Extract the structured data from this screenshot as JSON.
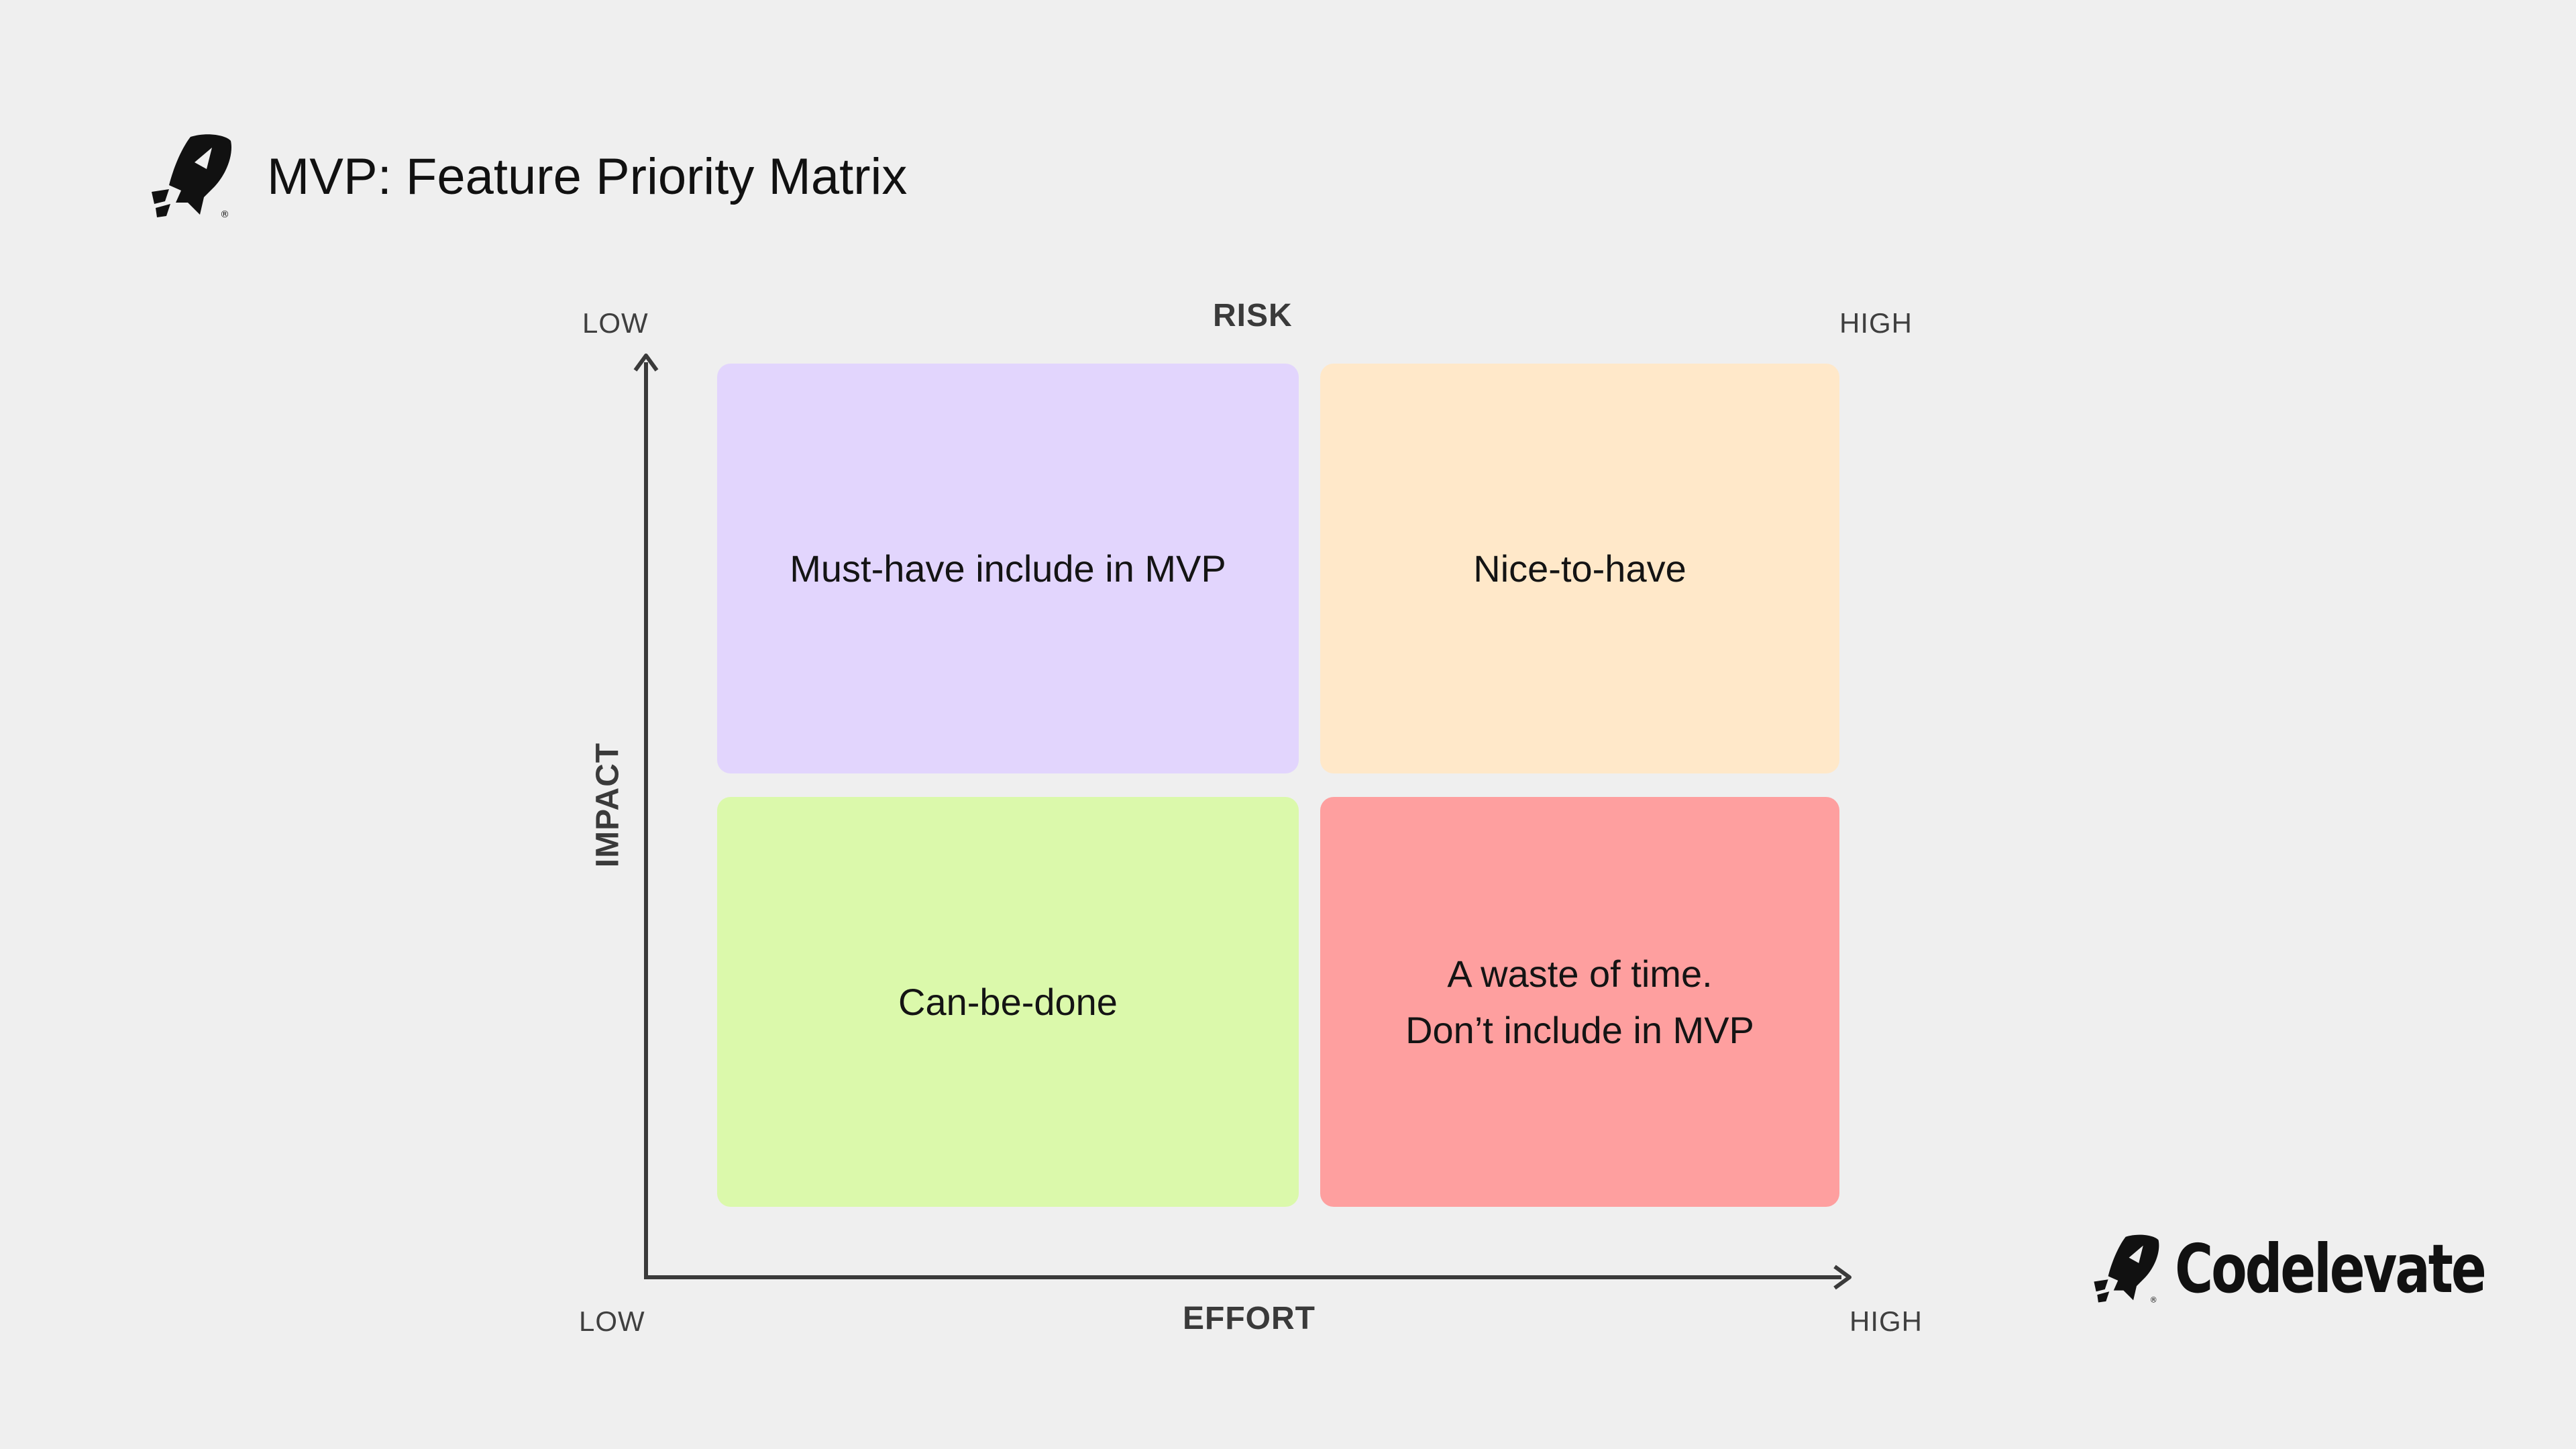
{
  "header": {
    "title": "MVP: Feature Priority Matrix",
    "logo_icon": "rocket-logo-icon"
  },
  "matrix": {
    "top_axis": {
      "title": "RISK",
      "low_label": "LOW",
      "high_label": "HIGH"
    },
    "bottom_axis": {
      "title": "EFFORT",
      "low_label": "LOW",
      "high_label": "HIGH"
    },
    "left_axis": {
      "title": "IMPACT"
    },
    "quadrants": [
      {
        "label": "Must-have include in MVP",
        "color": "#e2d5fd"
      },
      {
        "label": "Nice-to-have",
        "color": "#ffe8c9"
      },
      {
        "label": "Can-be-done",
        "color": "#dbf9ab"
      },
      {
        "label": "A waste of time.\nDon’t include in MVP",
        "color": "#fe9f9f"
      }
    ],
    "axis_color": "#3a3a3a"
  },
  "brand": {
    "name": "Codelevate",
    "logo_icon": "rocket-logo-icon"
  }
}
